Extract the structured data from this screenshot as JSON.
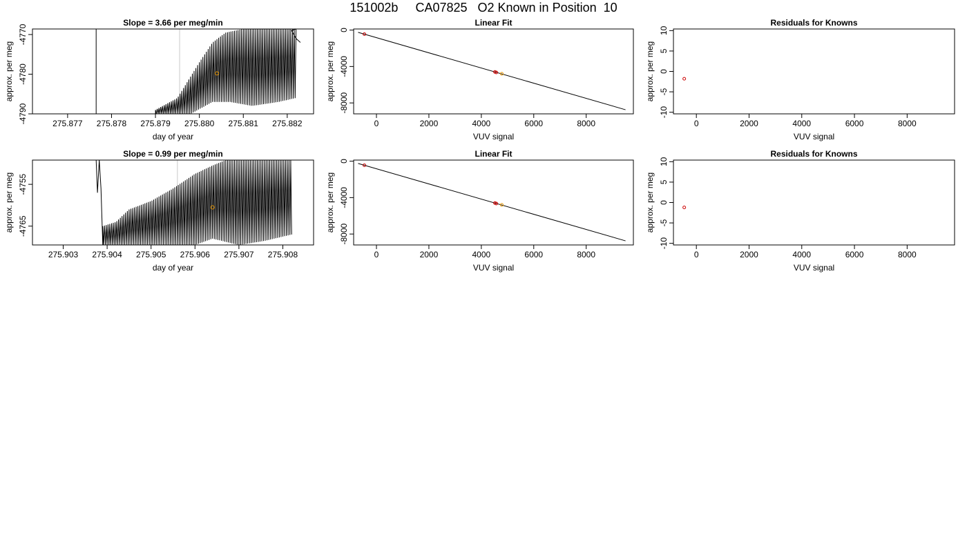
{
  "page_title": "151002b     CA07825   O2 Known in Position  10",
  "chart_data": [
    {
      "id": "ts1",
      "type": "line",
      "title": "Slope =  3.66  per meg/min",
      "xlabel": "day of year",
      "ylabel": "approx. per meg",
      "xlim": [
        275.8762,
        275.8826
      ],
      "ylim": [
        -4790,
        -4768.6
      ],
      "xticks": [
        275.877,
        275.878,
        275.879,
        275.88,
        275.881,
        275.882
      ],
      "xtick_labels": [
        "275.877",
        "275.878",
        "275.879",
        "275.880",
        "275.881",
        "275.882"
      ],
      "yticks": [
        -4790,
        -4780,
        -4770
      ],
      "ytick_labels": [
        "-4790",
        "-4780",
        "-4770"
      ],
      "marker_line_x": 275.87955,
      "marker_point": {
        "x": 275.8804,
        "y": -4779.8
      },
      "series": [
        {
          "points": [
            [
              275.87765,
              -4768.6
            ],
            [
              275.87765,
              -4790
            ],
            [
              275.879,
              -4790
            ],
            [
              275.879,
              -4788.5
            ],
            [
              275.87905,
              -4790
            ],
            [
              275.8792,
              -4789
            ],
            [
              275.87935,
              -4790
            ],
            [
              275.87955,
              -4787
            ],
            [
              275.8797,
              -4790
            ],
            [
              275.8799,
              -4783
            ],
            [
              275.8801,
              -4787
            ],
            [
              275.8803,
              -4776
            ],
            [
              275.8805,
              -4783
            ],
            [
              275.8807,
              -4773
            ],
            [
              275.8809,
              -4785
            ],
            [
              275.8811,
              -4770
            ],
            [
              275.8814,
              -4787
            ],
            [
              275.8817,
              -4770
            ],
            [
              275.882,
              -4786
            ],
            [
              275.8821,
              -4769
            ],
            [
              275.8822,
              -4771
            ],
            [
              275.8823,
              -4772
            ]
          ],
          "envelope_start": 275.879,
          "envelope_end": 275.8822,
          "oscillation_period": 4e-05,
          "envelope_top": [
            [
              275.879,
              -4789
            ],
            [
              275.8795,
              -4786
            ],
            [
              275.88,
              -4777
            ],
            [
              275.8803,
              -4772
            ],
            [
              275.8806,
              -4769.5
            ],
            [
              275.881,
              -4768.6
            ],
            [
              275.8822,
              -4768.6
            ]
          ],
          "envelope_bottom": [
            [
              275.879,
              -4790
            ],
            [
              275.8798,
              -4790
            ],
            [
              275.8803,
              -4787
            ],
            [
              275.8807,
              -4787
            ],
            [
              275.8812,
              -4788
            ],
            [
              275.8818,
              -4787
            ],
            [
              275.8822,
              -4786
            ]
          ]
        }
      ]
    },
    {
      "id": "fit1",
      "type": "line",
      "title": "Linear Fit",
      "xlabel": "VUV signal",
      "ylabel": "approx. per meg",
      "xlim": [
        -870,
        9800
      ],
      "ylim": [
        -9200,
        120
      ],
      "xticks": [
        0,
        2000,
        4000,
        6000,
        8000
      ],
      "yticks": [
        0,
        -4000,
        -8000
      ],
      "fit_line": [
        [
          -700,
          -250
        ],
        [
          9500,
          -8750
        ]
      ],
      "points": [
        {
          "x": -460,
          "y": -450,
          "color": "#cc0000"
        },
        {
          "x": 4520,
          "y": -4600,
          "color": "#cc0000"
        },
        {
          "x": 4570,
          "y": -4650,
          "color": "#cc0000"
        },
        {
          "x": 4780,
          "y": -4800,
          "color": "#e69500"
        }
      ]
    },
    {
      "id": "res1",
      "type": "scatter",
      "title": "Residuals for Knowns",
      "xlabel": "VUV signal",
      "ylabel": "approx. per meg",
      "xlim": [
        -870,
        9800
      ],
      "ylim": [
        -10.4,
        10.4
      ],
      "xticks": [
        0,
        2000,
        4000,
        6000,
        8000
      ],
      "yticks": [
        10,
        5,
        0,
        -5,
        -10
      ],
      "points": [
        {
          "x": -460,
          "y": -1.8,
          "color": "#cc0000"
        }
      ]
    },
    {
      "id": "ts2",
      "type": "line",
      "title": "Slope =  0.99  per meg/min",
      "xlabel": "day of year",
      "ylabel": "approx. per meg",
      "xlim": [
        275.9023,
        275.9087
      ],
      "ylim": [
        -4769.5,
        -4749.2
      ],
      "xticks": [
        275.903,
        275.904,
        275.905,
        275.906,
        275.907,
        275.908
      ],
      "xtick_labels": [
        "275.903",
        "275.904",
        "275.905",
        "275.906",
        "275.907",
        "275.908"
      ],
      "yticks": [
        -4765,
        -4755
      ],
      "ytick_labels": [
        "-4765",
        "-4755"
      ],
      "marker_line_x": 275.9056,
      "marker_point": {
        "x": 275.9064,
        "y": -4760.5
      },
      "series": [
        {
          "points": [
            [
              275.90375,
              -4749.2
            ],
            [
              275.90378,
              -4757
            ],
            [
              275.90382,
              -4749.2
            ],
            [
              275.90386,
              -4756
            ],
            [
              275.9039,
              -4769.5
            ]
          ],
          "envelope_start": 275.9039,
          "envelope_end": 275.9082,
          "oscillation_period": 4e-05,
          "envelope_top": [
            [
              275.9039,
              -4765
            ],
            [
              275.9042,
              -4764
            ],
            [
              275.9045,
              -4761
            ],
            [
              275.905,
              -4759
            ],
            [
              275.9055,
              -4756
            ],
            [
              275.906,
              -4752.5
            ],
            [
              275.9064,
              -4750.5
            ],
            [
              275.9067,
              -4749.2
            ],
            [
              275.9082,
              -4749.2
            ]
          ],
          "envelope_bottom": [
            [
              275.9039,
              -4769.5
            ],
            [
              275.906,
              -4769.5
            ],
            [
              275.9064,
              -4768
            ],
            [
              275.907,
              -4769.5
            ],
            [
              275.9076,
              -4768.5
            ],
            [
              275.9082,
              -4767
            ]
          ]
        }
      ]
    },
    {
      "id": "fit2",
      "type": "line",
      "title": "Linear Fit",
      "xlabel": "VUV signal",
      "ylabel": "approx. per meg",
      "xlim": [
        -870,
        9800
      ],
      "ylim": [
        -9200,
        120
      ],
      "xticks": [
        0,
        2000,
        4000,
        6000,
        8000
      ],
      "yticks": [
        0,
        -4000,
        -8000
      ],
      "fit_line": [
        [
          -700,
          -250
        ],
        [
          9500,
          -8750
        ]
      ],
      "points": [
        {
          "x": -460,
          "y": -450,
          "color": "#cc0000"
        },
        {
          "x": 4520,
          "y": -4600,
          "color": "#cc0000"
        },
        {
          "x": 4570,
          "y": -4650,
          "color": "#cc0000"
        },
        {
          "x": 4780,
          "y": -4800,
          "color": "#e69500"
        }
      ]
    },
    {
      "id": "res2",
      "type": "scatter",
      "title": "Residuals for Knowns",
      "xlabel": "VUV signal",
      "ylabel": "approx. per meg",
      "xlim": [
        -870,
        9800
      ],
      "ylim": [
        -10.4,
        10.4
      ],
      "xticks": [
        0,
        2000,
        4000,
        6000,
        8000
      ],
      "yticks": [
        10,
        5,
        0,
        -5,
        -10
      ],
      "points": [
        {
          "x": -460,
          "y": -1.2,
          "color": "#cc0000"
        }
      ]
    }
  ]
}
